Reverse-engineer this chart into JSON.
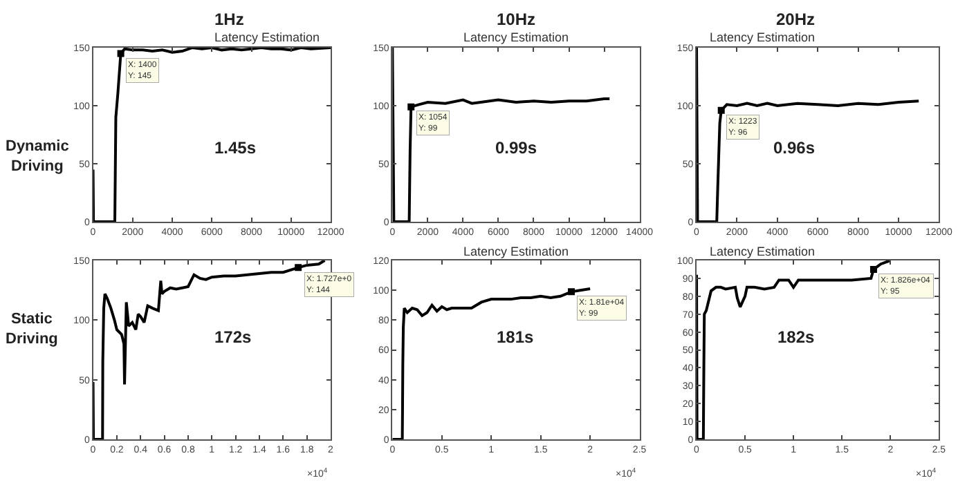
{
  "chart_data": [
    {
      "type": "line",
      "title": "Latency Estimation",
      "subtitle": "1Hz",
      "ylabel": "Dynamic Driving",
      "xlim": [
        0,
        12000
      ],
      "xticks": [
        0,
        2000,
        4000,
        6000,
        8000,
        10000,
        12000
      ],
      "ylim": [
        0,
        150
      ],
      "yticks": [
        0,
        50,
        100,
        150
      ],
      "series": [
        {
          "color": "#000000",
          "x": [
            0,
            20,
            1100,
            1150,
            1250,
            1400,
            1600,
            2000,
            2500,
            3000,
            3500,
            4000,
            4500,
            5000,
            5500,
            6000,
            6500,
            7000,
            7500,
            8000,
            8500,
            9000,
            9500,
            10000,
            10500,
            11000,
            12000
          ],
          "values": [
            45,
            0,
            0,
            90,
            110,
            145,
            149,
            148,
            148,
            147,
            148,
            146,
            147,
            150,
            149,
            150,
            148,
            149,
            148,
            149,
            150,
            149,
            149,
            148,
            150,
            149,
            150
          ]
        }
      ],
      "annotations": [
        "1.45s",
        {
          "text": "X: 1400\nY: 145",
          "x": 1400,
          "y": 145
        }
      ]
    },
    {
      "type": "line",
      "title": "Latency Estimation",
      "subtitle": "10Hz",
      "xlim": [
        0,
        14000
      ],
      "xticks": [
        0,
        2000,
        4000,
        6000,
        8000,
        10000,
        12000,
        14000
      ],
      "ylim": [
        0,
        150
      ],
      "yticks": [
        0,
        50,
        100,
        150
      ],
      "series": [
        {
          "color": "#000000",
          "x": [
            0,
            80,
            950,
            1000,
            1054,
            1500,
            2000,
            3000,
            4000,
            4500,
            5000,
            6000,
            7000,
            8000,
            9000,
            10000,
            11000,
            12000,
            12300
          ],
          "values": [
            150,
            0,
            0,
            60,
            99,
            101,
            103,
            102,
            105,
            102,
            103,
            105,
            103,
            104,
            103,
            104,
            104,
            106,
            106
          ]
        }
      ],
      "annotations": [
        "0.99s",
        {
          "text": "X: 1054\nY: 99",
          "x": 1054,
          "y": 99
        }
      ]
    },
    {
      "type": "line",
      "title": "Latency Estimation",
      "subtitle": "20Hz",
      "xlim": [
        0,
        12000
      ],
      "xticks": [
        0,
        2000,
        4000,
        6000,
        8000,
        10000,
        12000
      ],
      "ylim": [
        0,
        150
      ],
      "yticks": [
        0,
        50,
        100,
        150
      ],
      "series": [
        {
          "color": "#000000",
          "x": [
            0,
            50,
            1000,
            1050,
            1150,
            1223,
            1500,
            2000,
            2500,
            3000,
            3500,
            4000,
            5000,
            6000,
            7000,
            8000,
            9000,
            10000,
            11000
          ],
          "values": [
            150,
            0,
            0,
            30,
            85,
            96,
            101,
            100,
            102,
            100,
            102,
            100,
            102,
            101,
            100,
            102,
            101,
            103,
            104
          ]
        }
      ],
      "annotations": [
        "0.96s",
        {
          "text": "X: 1223\nY: 96",
          "x": 1223,
          "y": 96
        }
      ]
    },
    {
      "type": "line",
      "ylabel": "Static Driving",
      "xlabel": "×10$^{4}$",
      "xlim": [
        0,
        2
      ],
      "xticks": [
        0,
        0.2,
        0.4,
        0.6,
        0.8,
        1,
        1.2,
        1.4,
        1.6,
        1.8,
        2
      ],
      "ylim": [
        0,
        150
      ],
      "yticks": [
        0,
        50,
        100,
        150
      ],
      "series": [
        {
          "color": "#000000",
          "x": [
            0,
            0.003,
            0.08,
            0.082,
            0.09,
            0.1,
            0.12,
            0.15,
            0.18,
            0.2,
            0.24,
            0.26,
            0.265,
            0.28,
            0.3,
            0.33,
            0.36,
            0.38,
            0.4,
            0.43,
            0.46,
            0.5,
            0.55,
            0.57,
            0.58,
            0.6,
            0.65,
            0.7,
            0.75,
            0.8,
            0.85,
            0.9,
            0.95,
            1,
            1.1,
            1.2,
            1.3,
            1.4,
            1.5,
            1.6,
            1.727,
            1.8,
            1.9,
            1.95
          ],
          "values": [
            48,
            0,
            0,
            65,
            110,
            122,
            118,
            110,
            100,
            92,
            88,
            80,
            46,
            115,
            95,
            98,
            92,
            105,
            103,
            98,
            112,
            110,
            108,
            133,
            122,
            124,
            127,
            126,
            127,
            128,
            138,
            135,
            134,
            136,
            137,
            137,
            138,
            139,
            140,
            140,
            144,
            146,
            147,
            150
          ]
        }
      ],
      "annotations": [
        "172s",
        {
          "text": "X: 1.727e+0\nY: 144",
          "x": 1.727,
          "y": 144
        }
      ]
    },
    {
      "type": "line",
      "title": "Latency Estimation",
      "xlabel": "×10$^{4}$",
      "xlim": [
        0,
        2.5
      ],
      "xticks": [
        0,
        0.5,
        1,
        1.5,
        2,
        2.5
      ],
      "ylim": [
        0,
        120
      ],
      "yticks": [
        0,
        20,
        40,
        60,
        80,
        100,
        120
      ],
      "series": [
        {
          "color": "#000000",
          "x": [
            0,
            0.1,
            0.102,
            0.105,
            0.11,
            0.12,
            0.15,
            0.2,
            0.25,
            0.3,
            0.35,
            0.4,
            0.45,
            0.5,
            0.55,
            0.6,
            0.7,
            0.8,
            0.9,
            1,
            1.1,
            1.2,
            1.3,
            1.4,
            1.5,
            1.6,
            1.7,
            1.81,
            1.9,
            2
          ],
          "values": [
            0,
            0,
            18,
            50,
            75,
            88,
            85,
            88,
            87,
            83,
            85,
            90,
            86,
            89,
            87,
            88,
            88,
            88,
            92,
            94,
            94,
            94,
            95,
            95,
            96,
            95,
            96,
            99,
            100,
            101
          ]
        }
      ],
      "annotations": [
        "181s",
        {
          "text": "X: 1.81e+04\nY: 99",
          "x": 1.81,
          "y": 99
        }
      ]
    },
    {
      "type": "line",
      "title": "Latency Estimation",
      "xlabel": "×10$^{4}$",
      "xlim": [
        0,
        2.5
      ],
      "xticks": [
        0,
        0.5,
        1,
        1.5,
        2,
        2.5
      ],
      "ylim": [
        0,
        100
      ],
      "yticks": [
        0,
        10,
        20,
        30,
        40,
        50,
        60,
        70,
        80,
        90,
        100
      ],
      "series": [
        {
          "color": "#000000",
          "x": [
            0,
            0.005,
            0.07,
            0.075,
            0.08,
            0.1,
            0.15,
            0.2,
            0.25,
            0.3,
            0.4,
            0.42,
            0.45,
            0.5,
            0.52,
            0.6,
            0.7,
            0.8,
            0.85,
            0.95,
            1,
            1.05,
            1.2,
            1.4,
            1.6,
            1.8,
            1.826,
            1.9,
            2
          ],
          "values": [
            92,
            0,
            0,
            40,
            70,
            72,
            83,
            85,
            85,
            84,
            85,
            79,
            74,
            80,
            85,
            85,
            84,
            85,
            89,
            89,
            85,
            89,
            89,
            89,
            89,
            90,
            95,
            98,
            100
          ]
        }
      ],
      "annotations": [
        "182s",
        {
          "text": "X: 1.826e+04\nY: 95",
          "x": 1.826,
          "y": 95
        }
      ]
    }
  ]
}
